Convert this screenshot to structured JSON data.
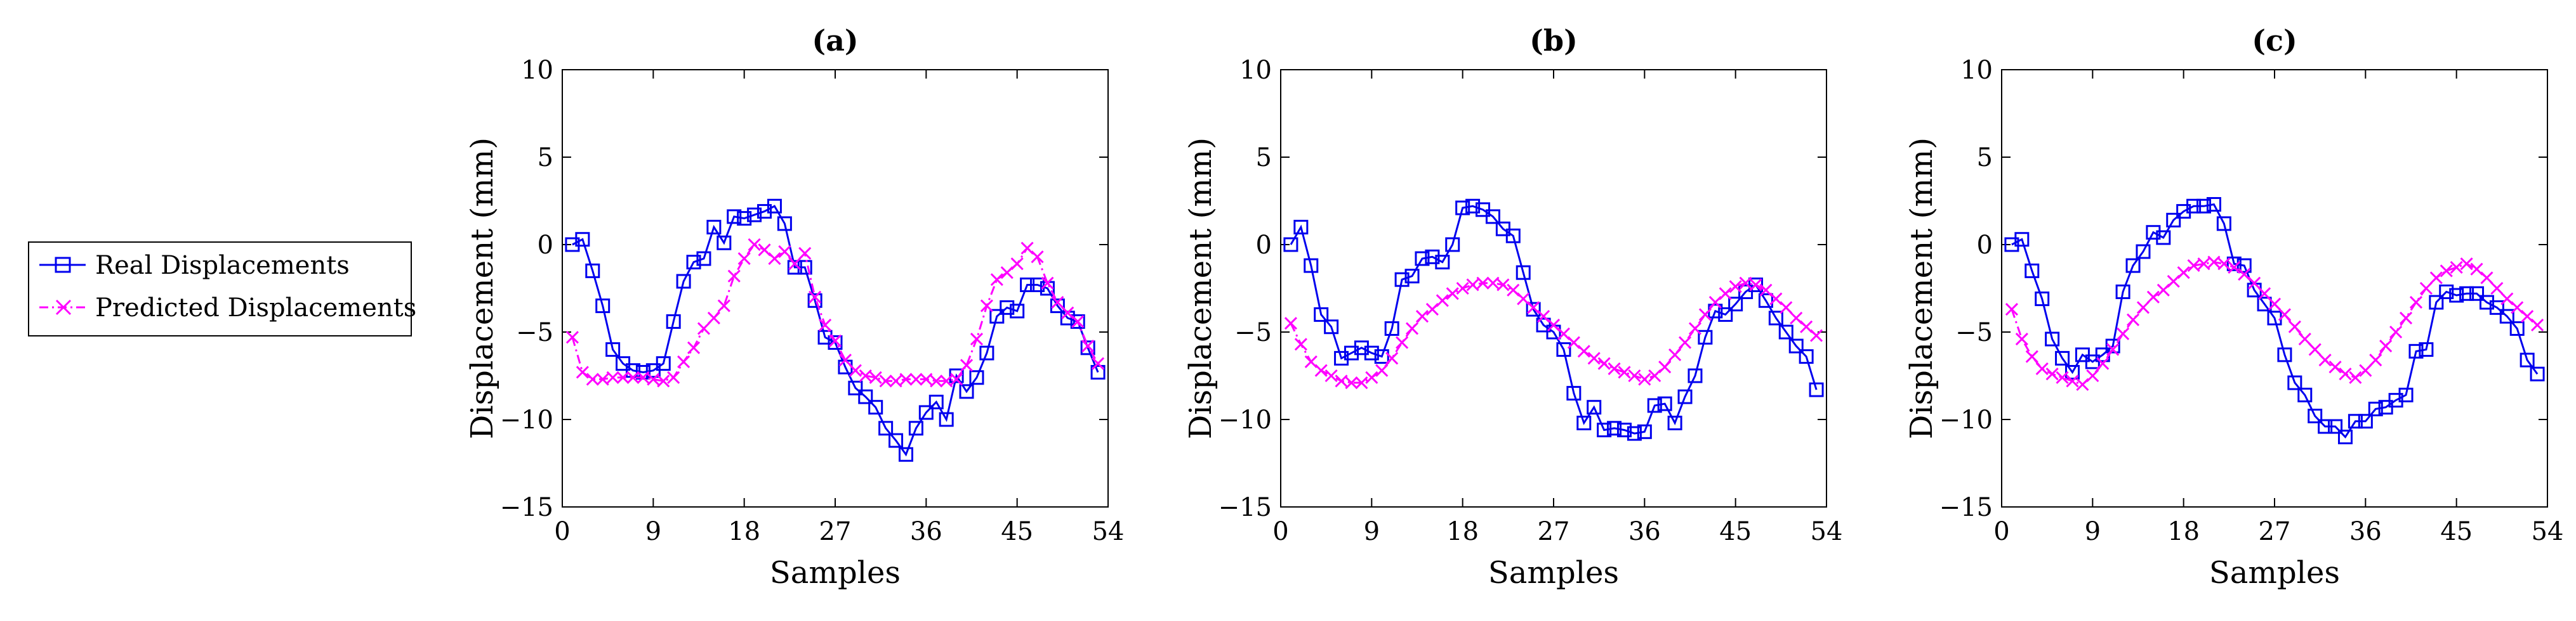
{
  "legend": {
    "entries": [
      {
        "label": "Real Displacements",
        "color": "#0000ee",
        "marker": "square",
        "line": "solid"
      },
      {
        "label": "Predicted Displacements",
        "color": "#ff00ff",
        "marker": "x",
        "line": "dashdot"
      }
    ]
  },
  "chart_data": [
    {
      "type": "line",
      "title": "(a)",
      "xlabel": "Samples",
      "ylabel": "Displacement (mm)",
      "xlim": [
        0,
        54
      ],
      "ylim": [
        -15,
        10
      ],
      "xticks": [
        0,
        9,
        18,
        27,
        36,
        45,
        54
      ],
      "yticks": [
        -15,
        -10,
        -5,
        0,
        5,
        10
      ],
      "grid": false,
      "series": [
        {
          "name": "Real Displacements",
          "x": [
            1,
            2,
            3,
            4,
            5,
            6,
            7,
            8,
            9,
            10,
            11,
            12,
            13,
            14,
            15,
            16,
            17,
            18,
            19,
            20,
            21,
            22,
            23,
            24,
            25,
            26,
            27,
            28,
            29,
            30,
            31,
            32,
            33,
            34,
            35,
            36,
            37,
            38,
            39,
            40,
            41,
            42,
            43,
            44,
            45,
            46,
            47,
            48,
            49,
            50,
            51,
            52,
            53
          ],
          "values": [
            0,
            0.3,
            -1.5,
            -3.5,
            -6,
            -6.8,
            -7.2,
            -7.3,
            -7.2,
            -6.8,
            -4.4,
            -2.1,
            -1,
            -0.8,
            1,
            0.1,
            1.6,
            1.5,
            1.7,
            1.9,
            2.2,
            1.2,
            -1.3,
            -1.3,
            -3.2,
            -5.3,
            -5.6,
            -7,
            -8.2,
            -8.7,
            -9.3,
            -10.5,
            -11.2,
            -12,
            -10.5,
            -9.6,
            -9,
            -10,
            -7.5,
            -8.4,
            -7.6,
            -6.2,
            -4.1,
            -3.6,
            -3.8,
            -2.3,
            -2.3,
            -2.5,
            -3.5,
            -4.2,
            -4.4,
            -5.9,
            -7.3
          ]
        },
        {
          "name": "Predicted Displacements",
          "x": [
            1,
            2,
            3,
            4,
            5,
            6,
            7,
            8,
            9,
            10,
            11,
            12,
            13,
            14,
            15,
            16,
            17,
            18,
            19,
            20,
            21,
            22,
            23,
            24,
            25,
            26,
            27,
            28,
            29,
            30,
            31,
            32,
            33,
            34,
            35,
            36,
            37,
            38,
            39,
            40,
            41,
            42,
            43,
            44,
            45,
            46,
            47,
            48,
            49,
            50,
            51,
            52,
            53
          ],
          "values": [
            -5.3,
            -7.3,
            -7.7,
            -7.7,
            -7.6,
            -7.6,
            -7.6,
            -7.6,
            -7.7,
            -7.8,
            -7.6,
            -6.7,
            -5.9,
            -4.8,
            -4.2,
            -3.5,
            -1.8,
            -0.8,
            0,
            -0.3,
            -0.8,
            -0.4,
            -1.1,
            -0.5,
            -3,
            -4.6,
            -5.5,
            -6.6,
            -7.2,
            -7.5,
            -7.6,
            -7.8,
            -7.8,
            -7.7,
            -7.7,
            -7.7,
            -7.8,
            -7.8,
            -7.7,
            -6.9,
            -5.4,
            -3.5,
            -2,
            -1.6,
            -1.1,
            -0.2,
            -0.7,
            -2.2,
            -3.3,
            -3.9,
            -4.4,
            -5.8,
            -6.8
          ]
        }
      ]
    },
    {
      "type": "line",
      "title": "(b)",
      "xlabel": "Samples",
      "ylabel": "Displacement (mm)",
      "xlim": [
        0,
        54
      ],
      "ylim": [
        -15,
        10
      ],
      "xticks": [
        0,
        9,
        18,
        27,
        36,
        45,
        54
      ],
      "yticks": [
        -15,
        -10,
        -5,
        0,
        5,
        10
      ],
      "grid": false,
      "series": [
        {
          "name": "Real Displacements",
          "x": [
            1,
            2,
            3,
            4,
            5,
            6,
            7,
            8,
            9,
            10,
            11,
            12,
            13,
            14,
            15,
            16,
            17,
            18,
            19,
            20,
            21,
            22,
            23,
            24,
            25,
            26,
            27,
            28,
            29,
            30,
            31,
            32,
            33,
            34,
            35,
            36,
            37,
            38,
            39,
            40,
            41,
            42,
            43,
            44,
            45,
            46,
            47,
            48,
            49,
            50,
            51,
            52,
            53
          ],
          "values": [
            0,
            1,
            -1.2,
            -4,
            -4.7,
            -6.5,
            -6.2,
            -5.9,
            -6.2,
            -6.4,
            -4.8,
            -2,
            -1.8,
            -0.8,
            -0.7,
            -1,
            0,
            2.1,
            2.2,
            2,
            1.6,
            0.9,
            0.5,
            -1.6,
            -3.7,
            -4.6,
            -5,
            -6,
            -8.5,
            -10.2,
            -9.3,
            -10.6,
            -10.5,
            -10.6,
            -10.8,
            -10.7,
            -9.2,
            -9.1,
            -10.2,
            -8.7,
            -7.5,
            -5.3,
            -3.8,
            -4,
            -3.4,
            -2.7,
            -2.3,
            -3.2,
            -4.2,
            -5,
            -5.8,
            -6.4,
            -8.3
          ]
        },
        {
          "name": "Predicted Displacements",
          "x": [
            1,
            2,
            3,
            4,
            5,
            6,
            7,
            8,
            9,
            10,
            11,
            12,
            13,
            14,
            15,
            16,
            17,
            18,
            19,
            20,
            21,
            22,
            23,
            24,
            25,
            26,
            27,
            28,
            29,
            30,
            31,
            32,
            33,
            34,
            35,
            36,
            37,
            38,
            39,
            40,
            41,
            42,
            43,
            44,
            45,
            46,
            47,
            48,
            49,
            50,
            51,
            52,
            53
          ],
          "values": [
            -4.5,
            -5.7,
            -6.7,
            -7.2,
            -7.5,
            -7.8,
            -7.9,
            -7.9,
            -7.6,
            -7.2,
            -6.5,
            -5.6,
            -4.8,
            -4.1,
            -3.7,
            -3.2,
            -2.8,
            -2.5,
            -2.3,
            -2.2,
            -2.2,
            -2.3,
            -2.6,
            -3.1,
            -3.6,
            -4.1,
            -4.6,
            -5.1,
            -5.6,
            -6.1,
            -6.5,
            -6.8,
            -7.1,
            -7.3,
            -7.5,
            -7.7,
            -7.5,
            -7,
            -6.3,
            -5.6,
            -4.8,
            -4,
            -3.3,
            -2.8,
            -2.4,
            -2.2,
            -2.3,
            -2.6,
            -3.1,
            -3.6,
            -4.2,
            -4.7,
            -5.2
          ]
        }
      ]
    },
    {
      "type": "line",
      "title": "(c)",
      "xlabel": "Samples",
      "ylabel": "Displacement (mm)",
      "xlim": [
        0,
        54
      ],
      "ylim": [
        -15,
        10
      ],
      "xticks": [
        0,
        9,
        18,
        27,
        36,
        45,
        54
      ],
      "yticks": [
        -15,
        -10,
        -5,
        0,
        5,
        10
      ],
      "grid": false,
      "series": [
        {
          "name": "Real Displacements",
          "x": [
            1,
            2,
            3,
            4,
            5,
            6,
            7,
            8,
            9,
            10,
            11,
            12,
            13,
            14,
            15,
            16,
            17,
            18,
            19,
            20,
            21,
            22,
            23,
            24,
            25,
            26,
            27,
            28,
            29,
            30,
            31,
            32,
            33,
            34,
            35,
            36,
            37,
            38,
            39,
            40,
            41,
            42,
            43,
            44,
            45,
            46,
            47,
            48,
            49,
            50,
            51,
            52,
            53
          ],
          "values": [
            0,
            0.3,
            -1.5,
            -3.1,
            -5.4,
            -6.5,
            -7.3,
            -6.3,
            -6.7,
            -6.3,
            -5.8,
            -2.7,
            -1.2,
            -0.4,
            0.7,
            0.4,
            1.4,
            1.9,
            2.2,
            2.2,
            2.3,
            1.2,
            -1.1,
            -1.2,
            -2.6,
            -3.4,
            -4.2,
            -6.3,
            -7.9,
            -8.6,
            -9.8,
            -10.4,
            -10.4,
            -11,
            -10.1,
            -10.1,
            -9.4,
            -9.3,
            -8.9,
            -8.6,
            -6.1,
            -6,
            -3.3,
            -2.7,
            -2.9,
            -2.8,
            -2.8,
            -3.3,
            -3.6,
            -4.1,
            -4.8,
            -6.6,
            -7.4
          ]
        },
        {
          "name": "Predicted Displacements",
          "x": [
            1,
            2,
            3,
            4,
            5,
            6,
            7,
            8,
            9,
            10,
            11,
            12,
            13,
            14,
            15,
            16,
            17,
            18,
            19,
            20,
            21,
            22,
            23,
            24,
            25,
            26,
            27,
            28,
            29,
            30,
            31,
            32,
            33,
            34,
            35,
            36,
            37,
            38,
            39,
            40,
            41,
            42,
            43,
            44,
            45,
            46,
            47,
            48,
            49,
            50,
            51,
            52,
            53
          ],
          "values": [
            -3.7,
            -5.4,
            -6.4,
            -7.1,
            -7.4,
            -7.6,
            -7.8,
            -8,
            -7.5,
            -6.8,
            -6,
            -5.1,
            -4.3,
            -3.6,
            -3,
            -2.6,
            -2.1,
            -1.6,
            -1.2,
            -1.1,
            -1,
            -1.1,
            -1.3,
            -1.7,
            -2.2,
            -2.8,
            -3.4,
            -4,
            -4.7,
            -5.4,
            -6,
            -6.6,
            -7,
            -7.4,
            -7.6,
            -7.2,
            -6.6,
            -5.8,
            -5,
            -4.2,
            -3.3,
            -2.5,
            -1.9,
            -1.5,
            -1.3,
            -1.1,
            -1.4,
            -1.9,
            -2.5,
            -3.1,
            -3.6,
            -4.1,
            -4.6
          ]
        }
      ]
    }
  ]
}
